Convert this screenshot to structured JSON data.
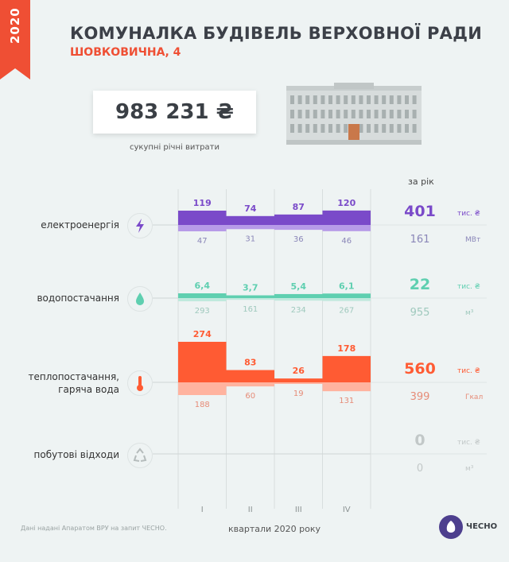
{
  "header": {
    "year": "2020",
    "title": "КОМУНАЛКА БУДІВЕЛЬ ВЕРХОВНОЇ РАДИ",
    "subtitle": "ШОВКОВИЧНА, 4",
    "total_value": "983 231 ₴",
    "total_label": "сукупні річні витрати"
  },
  "per_year_label": "за рік",
  "footer": {
    "note": "Дані надані Апаратом ВРУ на запит ЧЕСНО.",
    "quarters_label": "квартали 2020 року",
    "logo_text": "ЧЕСНО"
  },
  "colors": {
    "accent": "#ef4f34",
    "electricity": "#7a4ac9",
    "water": "#5fcfb0",
    "heat": "#ff5b33",
    "waste": "#c2c8c8"
  },
  "icons": {
    "electricity": "lightning-icon",
    "water": "water-drop-icon",
    "heat": "thermometer-icon",
    "waste": "recycle-icon"
  },
  "chart_data": {
    "type": "bar",
    "categories": [
      "I",
      "II",
      "III",
      "IV"
    ],
    "xlabel": "квартали 2020 року",
    "series": [
      {
        "key": "electricity",
        "name": "електроенергія",
        "cost_values": [
          119,
          74,
          87,
          120
        ],
        "cost_labels": [
          "119",
          "74",
          "87",
          "120"
        ],
        "volume_values": [
          47,
          31,
          36,
          46
        ],
        "volume_labels": [
          "47",
          "31",
          "36",
          "46"
        ],
        "annual_cost": "401",
        "annual_cost_unit": "тис. ₴",
        "annual_volume": "161",
        "annual_volume_unit": "МВт"
      },
      {
        "key": "water",
        "name": "водопостачання",
        "cost_values": [
          6.4,
          3.7,
          5.4,
          6.1
        ],
        "cost_labels": [
          "6,4",
          "3,7",
          "5,4",
          "6,1"
        ],
        "volume_values": [
          293,
          161,
          234,
          267
        ],
        "volume_labels": [
          "293",
          "161",
          "234",
          "267"
        ],
        "annual_cost": "22",
        "annual_cost_unit": "тис. ₴",
        "annual_volume": "955",
        "annual_volume_unit": "м³"
      },
      {
        "key": "heat",
        "name": "теплопостачання,",
        "name2": "гаряча вода",
        "cost_values": [
          274,
          83,
          26,
          178
        ],
        "cost_labels": [
          "274",
          "83",
          "26",
          "178"
        ],
        "volume_values": [
          188,
          60,
          19,
          131
        ],
        "volume_labels": [
          "188",
          "60",
          "19",
          "131"
        ],
        "annual_cost": "560",
        "annual_cost_unit": "тис. ₴",
        "annual_volume": "399",
        "annual_volume_unit": "Гкал"
      },
      {
        "key": "waste",
        "name": "побутові відходи",
        "cost_values": [
          0,
          0,
          0,
          0
        ],
        "cost_labels": [],
        "volume_values": [
          0,
          0,
          0,
          0
        ],
        "volume_labels": [],
        "annual_cost": "0",
        "annual_cost_unit": "тис. ₴",
        "annual_volume": "0",
        "annual_volume_unit": "м³"
      }
    ]
  }
}
